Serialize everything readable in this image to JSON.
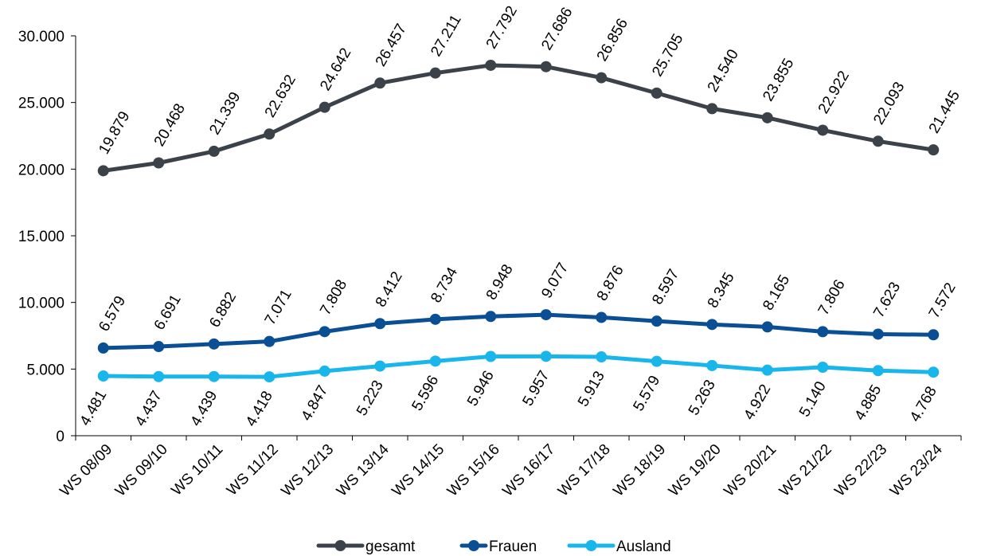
{
  "chart_data": {
    "type": "line",
    "categories": [
      "WS 08/09",
      "WS 09/10",
      "WS 10/11",
      "WS 11/12",
      "WS 12/13",
      "WS 13/14",
      "WS 14/15",
      "WS 15/16",
      "WS 16/17",
      "WS 17/18",
      "WS 18/19",
      "WS 19/20",
      "WS 20/21",
      "WS 21/22",
      "WS 22/23",
      "WS 23/24"
    ],
    "ylim": [
      0,
      30000
    ],
    "yticks": [
      0,
      5000,
      10000,
      15000,
      20000,
      25000,
      30000
    ],
    "ytick_labels": [
      "0",
      "5.000",
      "10.000",
      "15.000",
      "20.000",
      "25.000",
      "30.000"
    ],
    "grid": false,
    "legend_position": "bottom",
    "series": [
      {
        "name": "gesamt",
        "color": "#3c4249",
        "values": [
          19879,
          20468,
          21339,
          22632,
          24642,
          26457,
          27211,
          27792,
          27686,
          26856,
          25705,
          24540,
          23855,
          22922,
          22093,
          21445
        ],
        "labels": [
          "19.879",
          "20.468",
          "21.339",
          "22.632",
          "24.642",
          "26.457",
          "27.211",
          "27.792",
          "27.686",
          "26.856",
          "25.705",
          "24.540",
          "23.855",
          "22.922",
          "22.093",
          "21.445"
        ]
      },
      {
        "name": "Frauen",
        "color": "#0a4f94",
        "values": [
          6579,
          6691,
          6882,
          7071,
          7808,
          8412,
          8734,
          8948,
          9077,
          8876,
          8597,
          8345,
          8165,
          7806,
          7623,
          7572
        ],
        "labels": [
          "6.579",
          "6.691",
          "6.882",
          "7.071",
          "7.808",
          "8.412",
          "8.734",
          "8.948",
          "9.077",
          "8.876",
          "8.597",
          "8.345",
          "8.165",
          "7.806",
          "7.623",
          "7.572"
        ]
      },
      {
        "name": "Ausland",
        "color": "#19b6ec",
        "values": [
          4481,
          4437,
          4439,
          4418,
          4847,
          5223,
          5596,
          5946,
          5957,
          5913,
          5579,
          5263,
          4922,
          5140,
          4885,
          4768
        ],
        "labels": [
          "4.481",
          "4.437",
          "4.439",
          "4.418",
          "4.847",
          "5.223",
          "5.596",
          "5.946",
          "5.957",
          "5.913",
          "5.579",
          "5.263",
          "4.922",
          "5.140",
          "4.885",
          "4.768"
        ]
      }
    ]
  }
}
